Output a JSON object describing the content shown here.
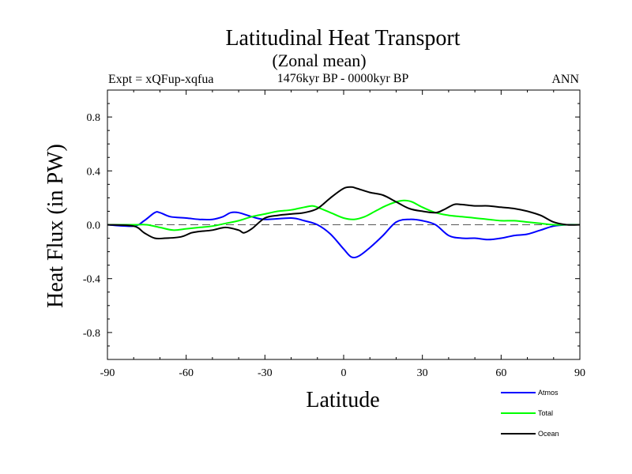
{
  "chart_data": {
    "type": "line",
    "title": "Latitudinal Heat Transport",
    "subtitle": "(Zonal mean)",
    "left_label": "Expt = xQFup-xqfua",
    "center_label": "1476kyr BP - 0000kyr BP",
    "right_label": "ANN",
    "xlabel": "Latitude",
    "ylabel": "Heat Flux (in PW)",
    "xlim": [
      -90,
      90
    ],
    "ylim": [
      -1.0,
      1.0
    ],
    "xticks": [
      -90,
      -60,
      -30,
      0,
      30,
      60,
      90
    ],
    "xtick_labels": [
      "-90",
      "-60",
      "-30",
      "0",
      "30",
      "60",
      "90"
    ],
    "yticks": [
      0.8,
      0.4,
      0.0,
      -0.4,
      -0.8
    ],
    "ytick_labels": [
      "0.8",
      "0.4",
      "0.0",
      "-0.4",
      "-0.8"
    ],
    "zero_line": true,
    "series": [
      {
        "name": "Atmos",
        "color": "#0000ff",
        "x": [
          -90,
          -80,
          -76,
          -72,
          -70,
          -66,
          -60,
          -55,
          -50,
          -46,
          -43,
          -40,
          -35,
          -30,
          -20,
          -15,
          -10,
          -5,
          0,
          3,
          6,
          10,
          15,
          20,
          25,
          30,
          35,
          40,
          45,
          50,
          55,
          60,
          65,
          70,
          75,
          80,
          85,
          90
        ],
        "y": [
          0.0,
          -0.01,
          0.03,
          0.09,
          0.09,
          0.06,
          0.05,
          0.04,
          0.04,
          0.06,
          0.09,
          0.09,
          0.06,
          0.04,
          0.05,
          0.03,
          0.0,
          -0.07,
          -0.18,
          -0.24,
          -0.23,
          -0.17,
          -0.08,
          0.02,
          0.04,
          0.03,
          0.0,
          -0.08,
          -0.1,
          -0.1,
          -0.11,
          -0.1,
          -0.08,
          -0.07,
          -0.04,
          -0.01,
          0.0,
          0.0
        ]
      },
      {
        "name": "Total",
        "color": "#00ff00",
        "x": [
          -90,
          -80,
          -75,
          -70,
          -65,
          -60,
          -55,
          -50,
          -45,
          -40,
          -35,
          -30,
          -25,
          -20,
          -15,
          -12,
          -10,
          -5,
          0,
          4,
          8,
          12,
          16,
          20,
          23,
          26,
          30,
          35,
          40,
          45,
          50,
          55,
          60,
          65,
          70,
          75,
          80,
          85,
          90
        ],
        "y": [
          0.0,
          0.0,
          0.0,
          -0.02,
          -0.04,
          -0.03,
          -0.02,
          -0.01,
          0.01,
          0.03,
          0.06,
          0.08,
          0.1,
          0.11,
          0.13,
          0.14,
          0.13,
          0.09,
          0.05,
          0.04,
          0.06,
          0.1,
          0.14,
          0.17,
          0.18,
          0.17,
          0.13,
          0.09,
          0.07,
          0.06,
          0.05,
          0.04,
          0.03,
          0.03,
          0.02,
          0.01,
          0.0,
          0.0,
          0.0
        ]
      },
      {
        "name": "Ocean",
        "color": "#000000",
        "x": [
          -90,
          -80,
          -76,
          -72,
          -68,
          -62,
          -58,
          -55,
          -50,
          -45,
          -40,
          -38,
          -35,
          -30,
          -25,
          -20,
          -15,
          -10,
          -5,
          0,
          3,
          5,
          10,
          15,
          20,
          25,
          30,
          35,
          38,
          42,
          45,
          50,
          55,
          60,
          65,
          70,
          75,
          80,
          85,
          90
        ],
        "y": [
          0.0,
          -0.01,
          -0.06,
          -0.1,
          -0.1,
          -0.09,
          -0.06,
          -0.05,
          -0.04,
          -0.02,
          -0.04,
          -0.06,
          -0.03,
          0.05,
          0.07,
          0.08,
          0.09,
          0.12,
          0.2,
          0.27,
          0.28,
          0.27,
          0.24,
          0.22,
          0.17,
          0.12,
          0.1,
          0.09,
          0.11,
          0.15,
          0.15,
          0.14,
          0.14,
          0.13,
          0.12,
          0.1,
          0.07,
          0.02,
          0.0,
          0.0
        ]
      }
    ]
  }
}
